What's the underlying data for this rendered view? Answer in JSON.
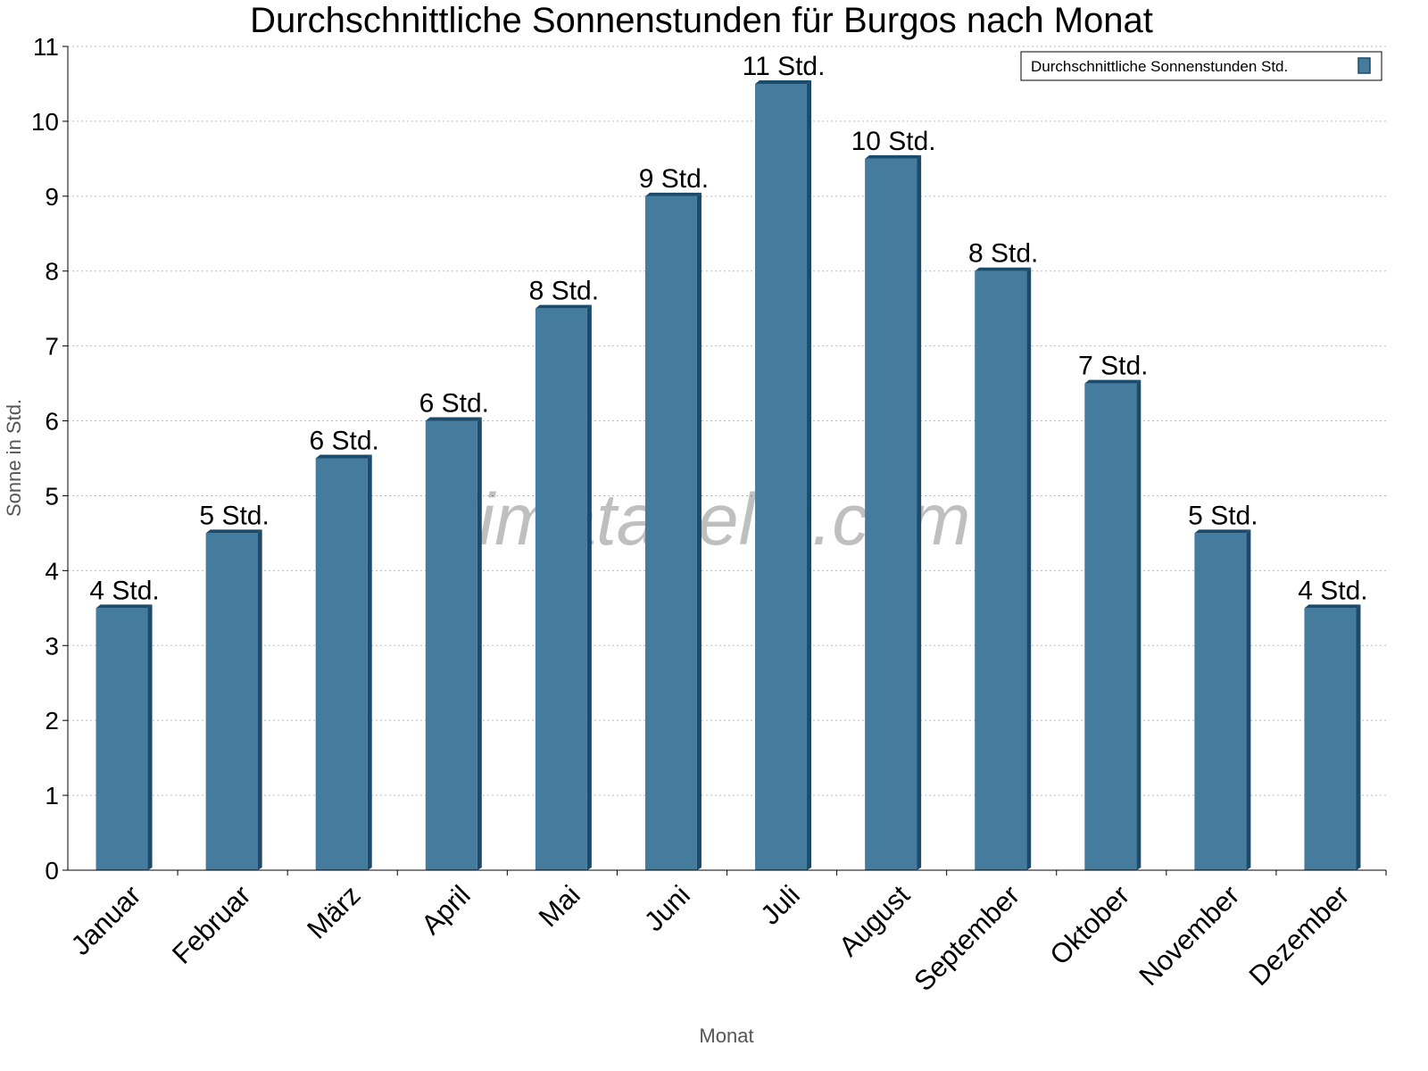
{
  "chart_data": {
    "type": "bar",
    "title": "Durchschnittliche Sonnenstunden für Burgos nach Monat",
    "xlabel": "Monat",
    "ylabel": "Sonne in Std.",
    "ylim": [
      0,
      11
    ],
    "yticks": [
      0,
      1,
      2,
      3,
      4,
      5,
      6,
      7,
      8,
      9,
      10,
      11
    ],
    "grid": true,
    "legend_position": "top-right",
    "watermark": "klimatabelle.com",
    "categories": [
      "Januar",
      "Februar",
      "März",
      "April",
      "Mai",
      "Juni",
      "Juli",
      "August",
      "September",
      "Oktober",
      "November",
      "Dezember"
    ],
    "series": [
      {
        "name": "Durchschnittliche Sonnenstunden Std.",
        "color": "#457b9d",
        "values": [
          3.5,
          4.5,
          5.5,
          6,
          7.5,
          9,
          10.5,
          9.5,
          8,
          6.5,
          4.5,
          3.5
        ],
        "labels": [
          "4 Std.",
          "5 Std.",
          "6 Std.",
          "6 Std.",
          "8 Std.",
          "9 Std.",
          "11 Std.",
          "10 Std.",
          "8 Std.",
          "7 Std.",
          "5 Std.",
          "4 Std."
        ]
      }
    ]
  }
}
